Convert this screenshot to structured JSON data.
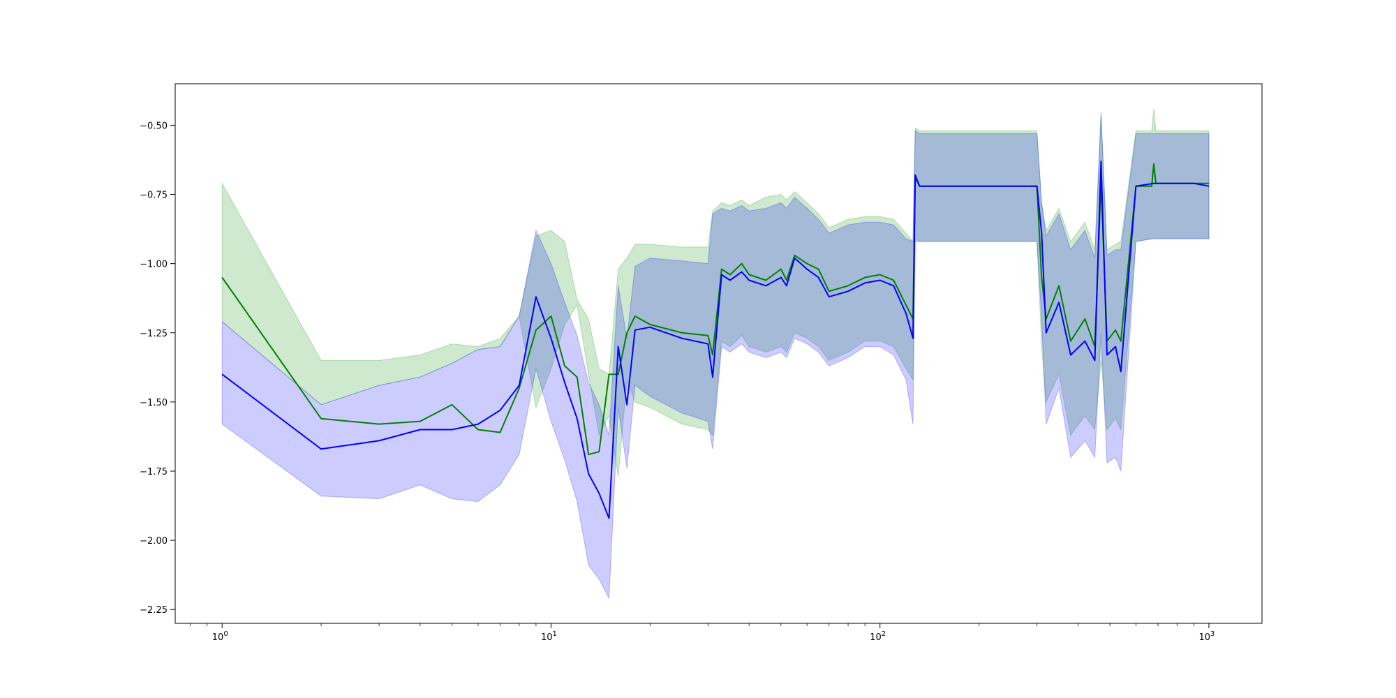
{
  "chart_data": {
    "type": "line",
    "title": "",
    "xlabel": "",
    "ylabel": "",
    "xscale": "log",
    "xlim": [
      0.72,
      1450
    ],
    "ylim": [
      -2.3,
      -0.35
    ],
    "grid": false,
    "legend": "none",
    "x_ticks": [
      {
        "value": 1,
        "label": "10",
        "exp": "0"
      },
      {
        "value": 10,
        "label": "10",
        "exp": "1"
      },
      {
        "value": 100,
        "label": "10",
        "exp": "2"
      },
      {
        "value": 1000,
        "label": "10",
        "exp": "3"
      }
    ],
    "y_ticks": [
      {
        "value": -0.5,
        "label": "−0.50"
      },
      {
        "value": -0.75,
        "label": "−0.75"
      },
      {
        "value": -1.0,
        "label": "−1.00"
      },
      {
        "value": -1.25,
        "label": "−1.25"
      },
      {
        "value": -1.5,
        "label": "−1.50"
      },
      {
        "value": -1.75,
        "label": "−1.75"
      },
      {
        "value": -2.0,
        "label": "−2.00"
      },
      {
        "value": -2.25,
        "label": "−2.25"
      }
    ],
    "series": [
      {
        "color": "#008000",
        "band_color": "#2ca02c",
        "band_opacity": 0.23,
        "x": [
          1,
          2,
          3,
          4,
          5,
          6,
          7,
          8,
          9,
          10,
          11,
          12,
          13,
          14,
          15,
          16,
          17,
          18,
          20,
          25,
          30,
          31,
          33,
          35,
          38,
          40,
          45,
          50,
          52,
          55,
          60,
          65,
          70,
          80,
          90,
          100,
          110,
          120,
          126,
          128,
          132,
          150,
          200,
          250,
          300,
          310,
          320,
          350,
          380,
          420,
          450,
          470,
          490,
          520,
          540,
          600,
          670,
          680,
          690,
          800,
          900,
          1000
        ],
        "y": [
          -1.05,
          -1.56,
          -1.58,
          -1.57,
          -1.51,
          -1.6,
          -1.61,
          -1.45,
          -1.24,
          -1.19,
          -1.37,
          -1.41,
          -1.69,
          -1.68,
          -1.4,
          -1.4,
          -1.25,
          -1.19,
          -1.22,
          -1.25,
          -1.26,
          -1.33,
          -1.02,
          -1.04,
          -1.0,
          -1.04,
          -1.06,
          -1.02,
          -1.06,
          -0.97,
          -1.0,
          -1.02,
          -1.1,
          -1.08,
          -1.05,
          -1.04,
          -1.06,
          -1.15,
          -1.2,
          -0.69,
          -0.72,
          -0.72,
          -0.72,
          -0.72,
          -0.72,
          -1.05,
          -1.2,
          -1.08,
          -1.28,
          -1.2,
          -1.3,
          -0.7,
          -1.28,
          -1.24,
          -1.28,
          -0.72,
          -0.72,
          -0.64,
          -0.71,
          -0.71,
          -0.71,
          -0.71
        ],
        "lower": [
          -1.21,
          -1.51,
          -1.44,
          -1.41,
          -1.36,
          -1.31,
          -1.3,
          -1.19,
          -1.52,
          -1.38,
          -1.22,
          -1.15,
          -1.4,
          -1.62,
          -1.55,
          -1.77,
          -1.42,
          -1.5,
          -1.52,
          -1.58,
          -1.6,
          -1.62,
          -1.28,
          -1.3,
          -1.26,
          -1.3,
          -1.32,
          -1.3,
          -1.32,
          -1.25,
          -1.27,
          -1.3,
          -1.35,
          -1.32,
          -1.28,
          -1.28,
          -1.3,
          -1.38,
          -1.42,
          -0.91,
          -0.92,
          -0.92,
          -0.92,
          -0.92,
          -0.92,
          -1.3,
          -1.5,
          -1.4,
          -1.62,
          -1.55,
          -1.6,
          -1.35,
          -1.6,
          -1.56,
          -1.6,
          -0.92,
          -0.91,
          -0.91,
          -0.91,
          -0.91,
          -0.91,
          -0.91
        ],
        "upper": [
          -0.71,
          -1.35,
          -1.35,
          -1.33,
          -1.29,
          -1.3,
          -1.27,
          -1.19,
          -0.9,
          -0.88,
          -0.92,
          -1.13,
          -1.2,
          -1.38,
          -1.4,
          -1.02,
          -0.98,
          -0.93,
          -0.93,
          -0.94,
          -0.94,
          -0.81,
          -0.78,
          -0.79,
          -0.77,
          -0.79,
          -0.76,
          -0.75,
          -0.77,
          -0.74,
          -0.78,
          -0.82,
          -0.87,
          -0.84,
          -0.83,
          -0.83,
          -0.84,
          -0.89,
          -0.92,
          -0.51,
          -0.52,
          -0.52,
          -0.52,
          -0.52,
          -0.52,
          -0.78,
          -0.88,
          -0.8,
          -0.92,
          -0.85,
          -0.95,
          -0.45,
          -0.95,
          -0.93,
          -0.92,
          -0.52,
          -0.52,
          -0.44,
          -0.52,
          -0.52,
          -0.52,
          -0.52
        ]
      },
      {
        "color": "#0000ff",
        "band_color": "#0000ff",
        "band_opacity": 0.2,
        "x": [
          1,
          2,
          3,
          4,
          5,
          6,
          7,
          8,
          9,
          10,
          11,
          12,
          13,
          14,
          15,
          16,
          17,
          18,
          20,
          25,
          30,
          31,
          33,
          35,
          38,
          40,
          45,
          50,
          52,
          55,
          60,
          65,
          70,
          80,
          90,
          100,
          110,
          120,
          126,
          128,
          132,
          150,
          200,
          250,
          300,
          310,
          320,
          350,
          380,
          420,
          450,
          470,
          490,
          520,
          540,
          600,
          680,
          800,
          900,
          1000
        ],
        "y": [
          -1.4,
          -1.67,
          -1.64,
          -1.6,
          -1.6,
          -1.58,
          -1.53,
          -1.44,
          -1.12,
          -1.27,
          -1.43,
          -1.56,
          -1.76,
          -1.83,
          -1.92,
          -1.3,
          -1.51,
          -1.24,
          -1.23,
          -1.27,
          -1.29,
          -1.41,
          -1.04,
          -1.06,
          -1.03,
          -1.06,
          -1.08,
          -1.05,
          -1.08,
          -0.98,
          -1.02,
          -1.05,
          -1.12,
          -1.1,
          -1.07,
          -1.06,
          -1.08,
          -1.18,
          -1.27,
          -0.68,
          -0.72,
          -0.72,
          -0.72,
          -0.72,
          -0.72,
          -0.89,
          -1.25,
          -1.14,
          -1.33,
          -1.28,
          -1.35,
          -0.63,
          -1.33,
          -1.3,
          -1.39,
          -0.72,
          -0.71,
          -0.71,
          -0.71,
          -0.72
        ],
        "lower": [
          -1.58,
          -1.84,
          -1.85,
          -1.8,
          -1.85,
          -1.86,
          -1.8,
          -1.69,
          -1.38,
          -1.57,
          -1.71,
          -1.86,
          -2.09,
          -2.14,
          -2.21,
          -1.52,
          -1.74,
          -1.44,
          -1.48,
          -1.54,
          -1.57,
          -1.67,
          -1.3,
          -1.32,
          -1.29,
          -1.32,
          -1.34,
          -1.32,
          -1.34,
          -1.27,
          -1.29,
          -1.32,
          -1.37,
          -1.34,
          -1.3,
          -1.3,
          -1.33,
          -1.42,
          -1.58,
          -0.92,
          -0.92,
          -0.92,
          -0.92,
          -0.92,
          -0.92,
          -1.2,
          -1.58,
          -1.45,
          -1.7,
          -1.64,
          -1.7,
          -1.25,
          -1.72,
          -1.7,
          -1.75,
          -0.92,
          -0.91,
          -0.91,
          -0.91,
          -0.91
        ],
        "upper": [
          -1.21,
          -1.51,
          -1.44,
          -1.41,
          -1.36,
          -1.31,
          -1.3,
          -1.19,
          -0.88,
          -1.0,
          -1.14,
          -1.26,
          -1.43,
          -1.51,
          -1.62,
          -1.08,
          -1.27,
          -1.01,
          -0.98,
          -0.99,
          -1.0,
          -0.82,
          -0.8,
          -0.81,
          -0.79,
          -0.81,
          -0.8,
          -0.78,
          -0.8,
          -0.76,
          -0.8,
          -0.84,
          -0.89,
          -0.86,
          -0.85,
          -0.85,
          -0.86,
          -0.91,
          -0.92,
          -0.52,
          -0.53,
          -0.53,
          -0.53,
          -0.53,
          -0.53,
          -0.78,
          -0.9,
          -0.82,
          -0.95,
          -0.88,
          -0.98,
          -0.46,
          -0.97,
          -0.95,
          -0.95,
          -0.53,
          -0.53,
          -0.53,
          -0.53,
          -0.53
        ]
      }
    ]
  }
}
